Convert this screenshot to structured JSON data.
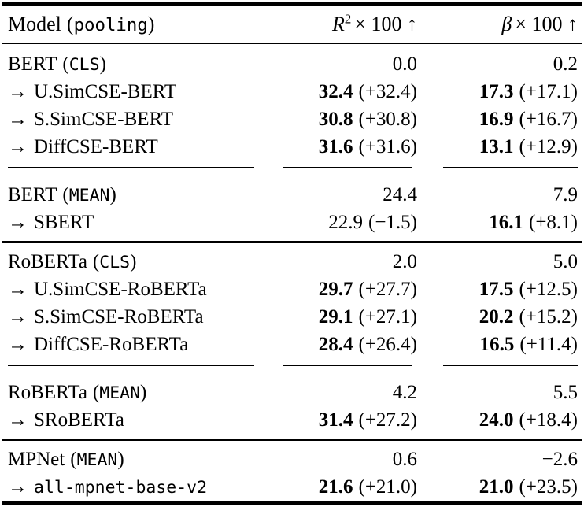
{
  "header": {
    "model": "Model",
    "pooling": "pooling",
    "col_r2": {
      "var": "R",
      "sup": "2",
      "rest": "× 100 ↑"
    },
    "col_beta": {
      "var": "β",
      "rest": "× 100 ↑"
    }
  },
  "punct": {
    "open": "(",
    "close": ")"
  },
  "sections": [
    {
      "groups": [
        {
          "rows": [
            {
              "model": {
                "arrow": "",
                "name": "BERT",
                "pool": "CLS"
              },
              "r2": {
                "value": "0.0",
                "delta": ""
              },
              "beta": {
                "value": "0.2",
                "delta": ""
              }
            },
            {
              "model": {
                "arrow": "→",
                "name": "U.SimCSE-BERT",
                "pool": ""
              },
              "r2": {
                "value": "32.4",
                "delta": "(+32.4)"
              },
              "beta": {
                "value": "17.3",
                "delta": "(+17.1)"
              }
            },
            {
              "model": {
                "arrow": "→",
                "name": "S.SimCSE-BERT",
                "pool": ""
              },
              "r2": {
                "value": "30.8",
                "delta": "(+30.8)"
              },
              "beta": {
                "value": "16.9",
                "delta": "(+16.7)"
              }
            },
            {
              "model": {
                "arrow": "→",
                "name": "DiffCSE-BERT",
                "pool": ""
              },
              "r2": {
                "value": "31.6",
                "delta": "(+31.6)"
              },
              "beta": {
                "value": "13.1",
                "delta": "(+12.9)"
              }
            }
          ]
        },
        {
          "rows": [
            {
              "model": {
                "arrow": "",
                "name": "BERT",
                "pool": "MEAN"
              },
              "r2": {
                "value": "24.4",
                "delta": ""
              },
              "beta": {
                "value": "7.9",
                "delta": ""
              }
            },
            {
              "model": {
                "arrow": "→",
                "name": "SBERT",
                "pool": ""
              },
              "r2": {
                "value": "22.9",
                "delta": "(−1.5)"
              },
              "beta": {
                "value": "16.1",
                "delta": "(+8.1)"
              }
            }
          ]
        }
      ]
    },
    {
      "groups": [
        {
          "rows": [
            {
              "model": {
                "arrow": "",
                "name": "RoBERTa",
                "pool": "CLS"
              },
              "r2": {
                "value": "2.0",
                "delta": ""
              },
              "beta": {
                "value": "5.0",
                "delta": ""
              }
            },
            {
              "model": {
                "arrow": "→",
                "name": "U.SimCSE-RoBERTa",
                "pool": ""
              },
              "r2": {
                "value": "29.7",
                "delta": "(+27.7)"
              },
              "beta": {
                "value": "17.5",
                "delta": "(+12.5)"
              }
            },
            {
              "model": {
                "arrow": "→",
                "name": "S.SimCSE-RoBERTa",
                "pool": ""
              },
              "r2": {
                "value": "29.1",
                "delta": "(+27.1)"
              },
              "beta": {
                "value": "20.2",
                "delta": "(+15.2)"
              }
            },
            {
              "model": {
                "arrow": "→",
                "name": "DiffCSE-RoBERTa",
                "pool": ""
              },
              "r2": {
                "value": "28.4",
                "delta": "(+26.4)"
              },
              "beta": {
                "value": "16.5",
                "delta": "(+11.4)"
              }
            }
          ]
        },
        {
          "rows": [
            {
              "model": {
                "arrow": "",
                "name": "RoBERTa",
                "pool": "MEAN"
              },
              "r2": {
                "value": "4.2",
                "delta": ""
              },
              "beta": {
                "value": "5.5",
                "delta": ""
              }
            },
            {
              "model": {
                "arrow": "→",
                "name": "SRoBERTa",
                "pool": ""
              },
              "r2": {
                "value": "31.4",
                "delta": "(+27.2)"
              },
              "beta": {
                "value": "24.0",
                "delta": "(+18.4)"
              }
            }
          ]
        }
      ]
    },
    {
      "groups": [
        {
          "rows": [
            {
              "model": {
                "arrow": "",
                "name": "MPNet",
                "pool": "MEAN"
              },
              "r2": {
                "value": "0.6",
                "delta": ""
              },
              "beta": {
                "value": "−2.6",
                "delta": ""
              }
            },
            {
              "model": {
                "arrow": "→",
                "name": "all-mpnet-base-v2",
                "pool": ""
              },
              "r2": {
                "value": "21.6",
                "delta": "(+21.0)"
              },
              "beta": {
                "value": "21.0",
                "delta": "(+23.5)"
              }
            }
          ]
        }
      ]
    }
  ]
}
